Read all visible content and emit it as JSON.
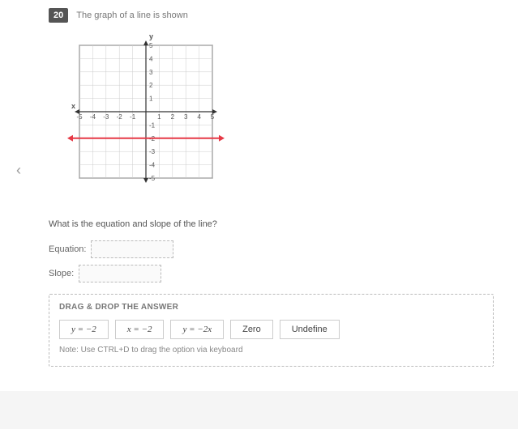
{
  "question": {
    "number": "20",
    "title": "The graph of a line is shown",
    "prompt": "What is the equation and slope of the line?",
    "fields": {
      "equation_label": "Equation:",
      "slope_label": "Slope:"
    }
  },
  "graph": {
    "xlim": [
      -5,
      5
    ],
    "ylim": [
      -5,
      5
    ],
    "tick_step": 1,
    "grid_color": "#cccccc",
    "axis_color": "#333333",
    "background_color": "#ffffff",
    "x_label": "x",
    "y_label": "y",
    "line": {
      "y_value": -2,
      "color": "#e63946",
      "width": 2
    },
    "label_fontsize": 8,
    "label_color": "#555555"
  },
  "dragdrop": {
    "title": "DRAG & DROP THE ANSWER",
    "note": "Note: Use CTRL+D to drag the option via keyboard",
    "options": [
      {
        "html": "y = −2",
        "math": true
      },
      {
        "html": "x = −2",
        "math": true
      },
      {
        "html": "y = −2x",
        "math": true
      },
      {
        "html": "Zero",
        "math": false
      },
      {
        "html": "Undefine",
        "math": false
      }
    ]
  }
}
